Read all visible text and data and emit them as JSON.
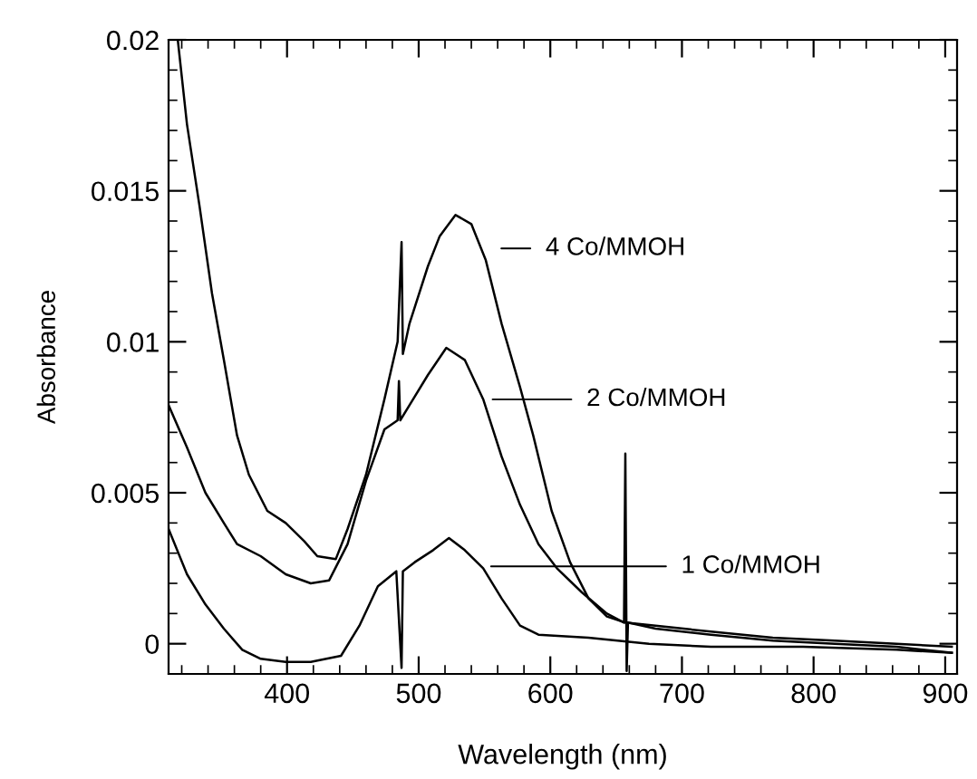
{
  "chart_data": {
    "type": "line",
    "xlabel": "Wavelength (nm)",
    "ylabel": "Absorbance",
    "xlim": [
      310,
      909
    ],
    "ylim": [
      -0.001,
      0.02
    ],
    "xticks": [
      {
        "value": 320,
        "label": null
      },
      {
        "value": 340,
        "label": null
      },
      {
        "value": 360,
        "label": null
      },
      {
        "value": 380,
        "label": null
      },
      400,
      {
        "value": 420,
        "label": null
      },
      {
        "value": 440,
        "label": null
      },
      {
        "value": 460,
        "label": null
      },
      {
        "value": 480,
        "label": null
      },
      500,
      {
        "value": 520,
        "label": null
      },
      {
        "value": 540,
        "label": null
      },
      {
        "value": 560,
        "label": null
      },
      {
        "value": 580,
        "label": null
      },
      600,
      {
        "value": 620,
        "label": null
      },
      {
        "value": 640,
        "label": null
      },
      {
        "value": 660,
        "label": null
      },
      {
        "value": 680,
        "label": null
      },
      700,
      {
        "value": 720,
        "label": null
      },
      {
        "value": 740,
        "label": null
      },
      {
        "value": 760,
        "label": null
      },
      {
        "value": 780,
        "label": null
      },
      800,
      {
        "value": 820,
        "label": null
      },
      {
        "value": 840,
        "label": null
      },
      {
        "value": 860,
        "label": null
      },
      {
        "value": 880,
        "label": null
      },
      900
    ],
    "yticks": [
      {
        "value": -0.001,
        "label": null
      },
      0,
      {
        "value": 0.001,
        "label": null
      },
      {
        "value": 0.002,
        "label": null
      },
      {
        "value": 0.003,
        "label": null
      },
      {
        "value": 0.004,
        "label": null
      },
      0.005,
      {
        "value": 0.006,
        "label": null
      },
      {
        "value": 0.007,
        "label": null
      },
      {
        "value": 0.008,
        "label": null
      },
      {
        "value": 0.009,
        "label": null
      },
      0.01,
      {
        "value": 0.011,
        "label": null
      },
      {
        "value": 0.012,
        "label": null
      },
      {
        "value": 0.013,
        "label": null
      },
      {
        "value": 0.014,
        "label": null
      },
      0.015,
      {
        "value": 0.016,
        "label": null
      },
      {
        "value": 0.017,
        "label": null
      },
      {
        "value": 0.018,
        "label": null
      },
      {
        "value": 0.019,
        "label": null
      },
      0.02
    ],
    "grid": false,
    "legend": false,
    "marker": "none",
    "line_style": "solid",
    "series": [
      {
        "color": "#000000",
        "x": [
          317,
          324,
          333.5,
          343,
          352,
          362,
          371,
          385,
          399,
          413,
          423,
          437,
          446,
          460,
          474,
          484,
          487,
          488,
          493,
          507,
          516,
          528,
          540,
          551,
          563,
          577,
          587,
          601,
          615,
          629,
          643,
          657,
          680,
          722,
          769,
          816,
          863,
          905
        ],
        "values": [
          0.02,
          0.0172,
          0.0145,
          0.0116,
          0.0094,
          0.0069,
          0.0056,
          0.0044,
          0.004,
          0.0034,
          0.0029,
          0.0028,
          0.0038,
          0.0056,
          0.0081,
          0.01,
          0.0133,
          0.0096,
          0.0106,
          0.0125,
          0.0135,
          0.0142,
          0.0139,
          0.0127,
          0.0106,
          0.0085,
          0.0069,
          0.0044,
          0.0027,
          0.0015,
          0.0009,
          0.0007,
          0.0006,
          0.0004,
          0.0002,
          0.0001,
          0.0,
          -0.0001
        ]
      },
      {
        "color": "#000000",
        "x": [
          310,
          324,
          338,
          352,
          362,
          380,
          399,
          418,
          432,
          446,
          460,
          474,
          484,
          485,
          486,
          493,
          507,
          521,
          535,
          549,
          563,
          577,
          591,
          605,
          624,
          643,
          656,
          657,
          658,
          659,
          680,
          722,
          769,
          816,
          863,
          905
        ],
        "values": [
          0.0079,
          0.0065,
          0.005,
          0.004,
          0.0033,
          0.0029,
          0.0023,
          0.002,
          0.0021,
          0.0033,
          0.0054,
          0.0071,
          0.0074,
          0.0087,
          0.0074,
          0.0079,
          0.0089,
          0.0098,
          0.0094,
          0.0081,
          0.0062,
          0.0046,
          0.0033,
          0.0025,
          0.0017,
          0.001,
          0.0007,
          0.0063,
          -0.0009,
          0.0007,
          0.0005,
          0.0003,
          0.0001,
          0.0,
          -0.0001,
          -0.0003
        ]
      },
      {
        "color": "#000000",
        "x": [
          310,
          324,
          338,
          352,
          366,
          380,
          399,
          418,
          441,
          455,
          469,
          483,
          487,
          488,
          497,
          511,
          523,
          535,
          549,
          563,
          577,
          591,
          629,
          675,
          722,
          792,
          863,
          905
        ],
        "values": [
          0.0038,
          0.0023,
          0.0013,
          0.0005,
          -0.0002,
          -0.0005,
          -0.0006,
          -0.0006,
          -0.0004,
          0.0006,
          0.0019,
          0.0024,
          -0.0008,
          0.0024,
          0.0027,
          0.0031,
          0.0035,
          0.0031,
          0.0025,
          0.0015,
          0.0006,
          0.0003,
          0.0002,
          0.0,
          -0.0001,
          -0.0001,
          -0.0002,
          -0.0003
        ]
      }
    ],
    "annotations": [
      "4 Co/MMOH",
      "2 Co/MMOH",
      {
        "text": "1 Co/MMOH",
        "x": 555,
        "y": 0.00256
      }
    ]
  }
}
